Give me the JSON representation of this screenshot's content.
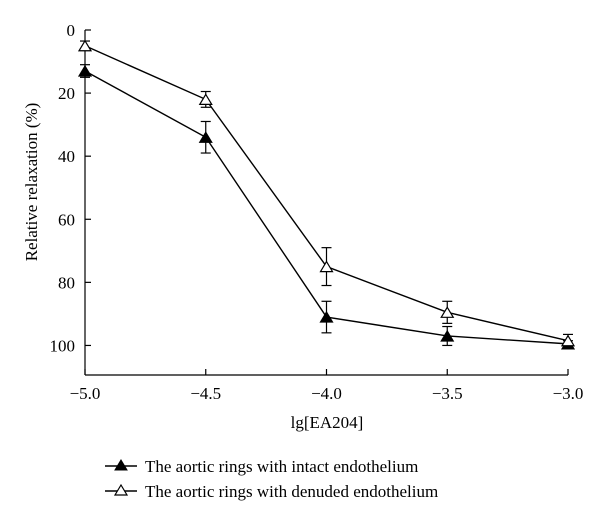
{
  "chart_data": {
    "type": "line",
    "xlabel": "lg[EA204]",
    "ylabel": "Relative relaxation (%)",
    "xlim": [
      -5.0,
      -3.0
    ],
    "ylim": [
      0,
      110
    ],
    "y_inverted": true,
    "xticks": [
      -5.0,
      -4.5,
      -4.0,
      -3.5,
      -3.0
    ],
    "xtick_labels": [
      "−5.0",
      "−4.5",
      "−4.0",
      "−3.5",
      "−3.0"
    ],
    "yticks": [
      0,
      20,
      40,
      60,
      80,
      100
    ],
    "ytick_labels": [
      "0",
      "20",
      "40",
      "60",
      "80",
      "100"
    ],
    "grid": false,
    "legend_position": "bottom",
    "series": [
      {
        "name": "The aortic rings with intact endothelium",
        "marker": "filled-triangle",
        "x": [
          -5.0,
          -4.5,
          -4.0,
          -3.5,
          -3.0
        ],
        "values": [
          13,
          34,
          91,
          97,
          99.5
        ],
        "error": [
          2,
          5,
          5,
          3,
          1
        ]
      },
      {
        "name": "The aortic rings with denuded endothelium",
        "marker": "open-triangle",
        "x": [
          -5.0,
          -4.5,
          -4.0,
          -3.5,
          -3.0
        ],
        "values": [
          5,
          22,
          75,
          89.5,
          98.5
        ],
        "error": [
          1.5,
          2.5,
          6,
          3.5,
          2
        ]
      }
    ]
  }
}
